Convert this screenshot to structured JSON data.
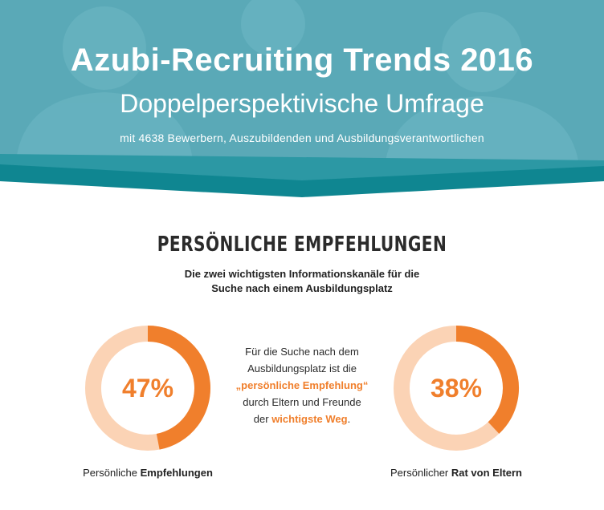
{
  "header": {
    "title": "Azubi-Recruiting Trends 2016",
    "subtitle": "Doppelperspektivische Umfrage",
    "description": "mit 4638 Bewerbern, Auszubildenden und Ausbildungsverantwortlichen"
  },
  "section": {
    "title": "PERSÖNLICHE EMPFEHLUNGEN",
    "subtitle": "Die zwei wichtigsten Informationskanäle für die Suche nach einem Ausbildungsplatz"
  },
  "stats": [
    {
      "value": 47,
      "label": "47%",
      "caption_prefix": "Persönliche ",
      "caption_bold": "Empfehlungen"
    },
    {
      "value": 38,
      "label": "38%",
      "caption_prefix": "Persönlicher ",
      "caption_bold": "Rat von Eltern"
    }
  ],
  "center": {
    "line1": "Für die Suche nach dem",
    "line2": "Ausbildungsplatz ist die",
    "highlight1": "„persönliche Empfehlung“",
    "line3": "durch Eltern und Freunde",
    "line4_prefix": "der ",
    "highlight2": "wichtigste Weg",
    "line4_suffix": "."
  },
  "colors": {
    "teal": "#5aa9b7",
    "teal_dark": "#0e8e98",
    "orange": "#f07f2c",
    "orange_light": "#fbd3b5"
  }
}
